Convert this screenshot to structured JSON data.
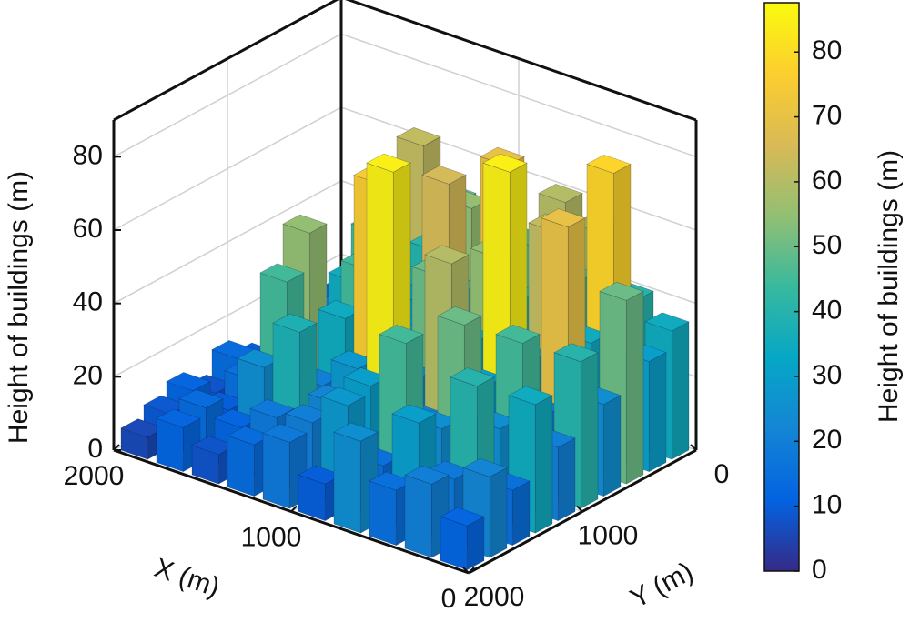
{
  "chart_data": {
    "type": "bar3d",
    "zlabel": "Height of buildings (m)",
    "xlabel": "X (m)",
    "ylabel": "Y (m)",
    "x": [
      100,
      300,
      500,
      700,
      900,
      1100,
      1300,
      1500,
      1700,
      1900
    ],
    "y": [
      100,
      300,
      500,
      700,
      900,
      1100,
      1300,
      1500,
      1700,
      1900
    ],
    "values": [
      [
        35,
        40,
        55,
        60,
        45,
        30,
        50,
        62,
        20,
        15
      ],
      [
        30,
        78,
        45,
        25,
        70,
        55,
        40,
        35,
        25,
        10
      ],
      [
        50,
        35,
        62,
        40,
        38,
        65,
        30,
        45,
        20,
        12
      ],
      [
        25,
        70,
        30,
        55,
        42,
        28,
        60,
        35,
        15,
        8
      ],
      [
        40,
        22,
        85,
        35,
        50,
        30,
        45,
        25,
        18,
        10
      ],
      [
        20,
        45,
        30,
        60,
        25,
        75,
        35,
        55,
        12,
        14
      ],
      [
        35,
        25,
        50,
        20,
        85,
        28,
        20,
        45,
        15,
        8
      ],
      [
        15,
        40,
        25,
        45,
        30,
        22,
        38,
        25,
        10,
        12
      ],
      [
        22,
        18,
        30,
        15,
        28,
        20,
        18,
        12,
        14,
        9
      ],
      [
        12,
        20,
        15,
        25,
        10,
        18,
        14,
        8,
        12,
        6
      ]
    ],
    "xlim": [
      0,
      2000
    ],
    "ylim": [
      0,
      2000
    ],
    "zlim": [
      0,
      90
    ],
    "xticks": [
      0,
      1000,
      2000
    ],
    "yticks": [
      0,
      1000,
      2000
    ],
    "zticks": [
      0,
      20,
      40,
      60,
      80
    ],
    "grid": true,
    "colorbar": {
      "label": "Height of buildings (m)",
      "clim": [
        0,
        87.6
      ],
      "ticks": [
        0,
        10,
        20,
        30,
        40,
        50,
        60,
        70,
        80
      ],
      "colormap": [
        "#352a87",
        "#0363e1",
        "#1485d4",
        "#06a7c6",
        "#38b99e",
        "#92bf73",
        "#d9ba56",
        "#fcce2e",
        "#f9fb0e"
      ]
    }
  }
}
